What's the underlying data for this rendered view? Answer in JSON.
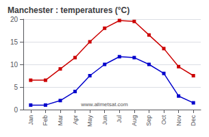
{
  "chart_data": {
    "type": "line",
    "title": "Manchester : temperatures (°C)",
    "categories": [
      "Jan",
      "Feb",
      "Mar",
      "Apr",
      "May",
      "Jun",
      "Jul",
      "Aug",
      "Sep",
      "Oct",
      "Nov",
      "Dec"
    ],
    "series": [
      {
        "color": "#cc0000",
        "values": [
          6.5,
          6.5,
          9.0,
          11.5,
          15.0,
          18.0,
          19.7,
          19.5,
          16.5,
          13.5,
          9.5,
          7.5
        ]
      },
      {
        "color": "#0000cc",
        "values": [
          1.0,
          1.0,
          2.0,
          4.0,
          7.5,
          10.0,
          11.7,
          11.5,
          10.0,
          8.0,
          3.0,
          1.5
        ]
      }
    ],
    "marker": "square",
    "ylim": [
      0,
      20
    ],
    "yticks": [
      0,
      5,
      10,
      15,
      20
    ],
    "grid": true,
    "annotations": [
      "www.allmetsat.com"
    ]
  }
}
